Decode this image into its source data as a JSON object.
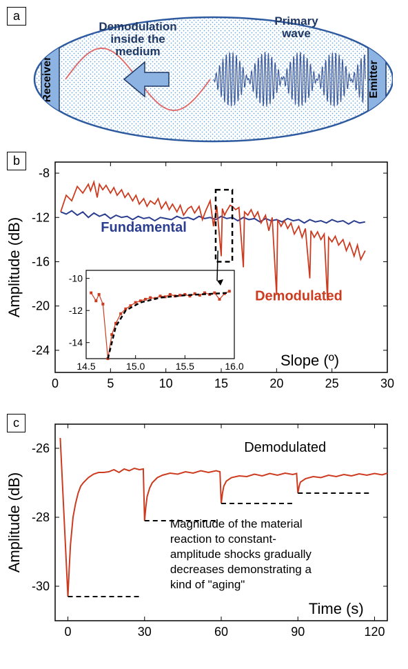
{
  "panel_a": {
    "label": "a",
    "text_demod": "Demodulation inside the medium",
    "text_primary": "Primary wave",
    "text_receiver": "Receiver",
    "text_emitter": "Emitter",
    "ellipse_fill": "#ffffff",
    "ellipse_stroke": "#2e5aa0",
    "dot_color": "#6fa8dc",
    "receiver_fill": "#8db3e2",
    "emitter_fill": "#8db3e2",
    "sine_color": "#e06666",
    "hf_color": "#3d5a9a",
    "arrow_fill": "#8db3e2",
    "text_color": "#1f3864"
  },
  "panel_b": {
    "label": "b",
    "ylabel": "Amplitude (dB)",
    "xlabel": "Slope (º)",
    "xlim": [
      0,
      30
    ],
    "ylim": [
      -26,
      -7
    ],
    "xticks": [
      0,
      5,
      10,
      15,
      20,
      25,
      30
    ],
    "yticks": [
      -8,
      -12,
      -16,
      -20,
      -24
    ],
    "fundamental_label": "Fundamental",
    "fundamental_color": "#2a3d8f",
    "demodulated_label": "Demodulated",
    "demodulated_color": "#cc3b1f",
    "fundamental_points": [
      [
        0.5,
        -11.5
      ],
      [
        1,
        -11.7
      ],
      [
        1.5,
        -11.4
      ],
      [
        2,
        -11.8
      ],
      [
        2.5,
        -11.5
      ],
      [
        3,
        -12.0
      ],
      [
        3.5,
        -11.6
      ],
      [
        4,
        -11.9
      ],
      [
        4.5,
        -11.7
      ],
      [
        5,
        -12.1
      ],
      [
        5.5,
        -11.8
      ],
      [
        6,
        -12.0
      ],
      [
        6.5,
        -11.9
      ],
      [
        7,
        -12.2
      ],
      [
        7.5,
        -11.9
      ],
      [
        8,
        -12.1
      ],
      [
        8.5,
        -12.0
      ],
      [
        9,
        -12.3
      ],
      [
        9.5,
        -12.0
      ],
      [
        10,
        -12.1
      ],
      [
        10.5,
        -12.2
      ],
      [
        11,
        -11.9
      ],
      [
        11.5,
        -12.1
      ],
      [
        12,
        -12.0
      ],
      [
        12.5,
        -12.2
      ],
      [
        13,
        -11.9
      ],
      [
        13.5,
        -12.1
      ],
      [
        14,
        -12.0
      ],
      [
        14.5,
        -12.2
      ],
      [
        15,
        -11.9
      ],
      [
        15.5,
        -12.1
      ],
      [
        16,
        -12.0
      ],
      [
        16.5,
        -12.3
      ],
      [
        17,
        -12.0
      ],
      [
        17.5,
        -12.2
      ],
      [
        18,
        -12.1
      ],
      [
        18.5,
        -12.4
      ],
      [
        19,
        -12.1
      ],
      [
        19.5,
        -12.3
      ],
      [
        20,
        -12.2
      ],
      [
        20.5,
        -12.4
      ],
      [
        21,
        -12.1
      ],
      [
        21.5,
        -12.3
      ],
      [
        22,
        -12.2
      ],
      [
        22.5,
        -12.5
      ],
      [
        23,
        -12.2
      ],
      [
        23.5,
        -12.4
      ],
      [
        24,
        -12.3
      ],
      [
        24.5,
        -12.5
      ],
      [
        25,
        -12.2
      ],
      [
        25.5,
        -12.4
      ],
      [
        26,
        -12.3
      ],
      [
        26.5,
        -12.6
      ],
      [
        27,
        -12.3
      ],
      [
        27.5,
        -12.5
      ],
      [
        28,
        -12.4
      ]
    ],
    "demodulated_points": [
      [
        0.5,
        -11.5
      ],
      [
        1,
        -10.0
      ],
      [
        1.5,
        -10.5
      ],
      [
        2,
        -9.2
      ],
      [
        2.5,
        -9.8
      ],
      [
        3,
        -9.0
      ],
      [
        3.2,
        -9.6
      ],
      [
        3.5,
        -8.8
      ],
      [
        3.8,
        -10.2
      ],
      [
        4,
        -9.0
      ],
      [
        4.3,
        -9.5
      ],
      [
        4.6,
        -9.1
      ],
      [
        5,
        -9.8
      ],
      [
        5.3,
        -9.3
      ],
      [
        5.6,
        -10.0
      ],
      [
        6,
        -9.5
      ],
      [
        6.3,
        -10.2
      ],
      [
        6.6,
        -9.8
      ],
      [
        7,
        -10.5
      ],
      [
        7.3,
        -10.0
      ],
      [
        7.6,
        -10.8
      ],
      [
        8,
        -10.3
      ],
      [
        8.3,
        -11.0
      ],
      [
        8.6,
        -10.5
      ],
      [
        9,
        -10.8
      ],
      [
        9.3,
        -10.3
      ],
      [
        9.6,
        -11.2
      ],
      [
        10,
        -10.6
      ],
      [
        10.3,
        -11.3
      ],
      [
        10.6,
        -10.8
      ],
      [
        11,
        -11.5
      ],
      [
        11.3,
        -10.9
      ],
      [
        11.6,
        -11.8
      ],
      [
        12,
        -11.2
      ],
      [
        12.3,
        -11.0
      ],
      [
        12.6,
        -11.6
      ],
      [
        13,
        -11.0
      ],
      [
        13.3,
        -12.2
      ],
      [
        13.6,
        -11.4
      ],
      [
        14,
        -10.5
      ],
      [
        14.3,
        -12.8
      ],
      [
        14.6,
        -11.0
      ],
      [
        15,
        -15.5
      ],
      [
        15.1,
        -11.2
      ],
      [
        15.3,
        -11.8
      ],
      [
        15.5,
        -11.4
      ],
      [
        15.8,
        -10.9
      ],
      [
        16,
        -11.0
      ],
      [
        16.3,
        -11.3
      ],
      [
        16.6,
        -11.1
      ],
      [
        17,
        -16.5
      ],
      [
        17.1,
        -11.5
      ],
      [
        17.4,
        -11.8
      ],
      [
        17.7,
        -11.3
      ],
      [
        18,
        -12.0
      ],
      [
        18.3,
        -11.5
      ],
      [
        18.6,
        -12.5
      ],
      [
        19,
        -11.8
      ],
      [
        19.3,
        -13.2
      ],
      [
        19.6,
        -12.0
      ],
      [
        20,
        -19.0
      ],
      [
        20.1,
        -12.2
      ],
      [
        20.4,
        -12.8
      ],
      [
        20.7,
        -12.3
      ],
      [
        21,
        -13.0
      ],
      [
        21.3,
        -12.5
      ],
      [
        21.6,
        -13.5
      ],
      [
        22,
        -12.8
      ],
      [
        22.3,
        -13.8
      ],
      [
        22.6,
        -13.0
      ],
      [
        23,
        -17.5
      ],
      [
        23.1,
        -13.2
      ],
      [
        23.4,
        -13.8
      ],
      [
        23.7,
        -13.3
      ],
      [
        24,
        -14.0
      ],
      [
        24.3,
        -13.5
      ],
      [
        24.6,
        -19.5
      ],
      [
        24.7,
        -13.8
      ],
      [
        25,
        -14.2
      ],
      [
        25.3,
        -13.7
      ],
      [
        25.6,
        -14.5
      ],
      [
        26,
        -14.0
      ],
      [
        26.3,
        -15.0
      ],
      [
        26.6,
        -14.3
      ],
      [
        27,
        -15.5
      ],
      [
        27.3,
        -14.5
      ],
      [
        27.6,
        -15.8
      ],
      [
        28,
        -15.0
      ]
    ],
    "inset": {
      "xlim": [
        14.5,
        16.0
      ],
      "ylim": [
        -15,
        -9.5
      ],
      "xticks": [
        14.5,
        15.0,
        15.5,
        16.0
      ],
      "yticks": [
        -10,
        -12,
        -14
      ],
      "color": "#cc3b1f",
      "points": [
        [
          14.55,
          -10.9
        ],
        [
          14.6,
          -11.4
        ],
        [
          14.63,
          -11.0
        ],
        [
          14.67,
          -11.6
        ],
        [
          14.72,
          -15.0
        ],
        [
          14.76,
          -13.5
        ],
        [
          14.8,
          -12.8
        ],
        [
          14.85,
          -12.2
        ],
        [
          14.9,
          -11.9
        ],
        [
          14.95,
          -11.7
        ],
        [
          15.0,
          -11.5
        ],
        [
          15.05,
          -11.4
        ],
        [
          15.1,
          -11.3
        ],
        [
          15.15,
          -11.2
        ],
        [
          15.2,
          -11.25
        ],
        [
          15.25,
          -11.1
        ],
        [
          15.3,
          -11.15
        ],
        [
          15.35,
          -11.0
        ],
        [
          15.4,
          -11.1
        ],
        [
          15.45,
          -11.05
        ],
        [
          15.5,
          -11.0
        ],
        [
          15.55,
          -11.1
        ],
        [
          15.6,
          -10.95
        ],
        [
          15.65,
          -11.05
        ],
        [
          15.7,
          -10.9
        ],
        [
          15.75,
          -11.0
        ],
        [
          15.8,
          -10.9
        ],
        [
          15.85,
          -11.3
        ],
        [
          15.9,
          -10.95
        ],
        [
          15.95,
          -10.8
        ]
      ],
      "dash_points": [
        [
          14.72,
          -15.0
        ],
        [
          14.8,
          -13.0
        ],
        [
          14.9,
          -12.0
        ],
        [
          15.05,
          -11.5
        ],
        [
          15.25,
          -11.2
        ],
        [
          15.5,
          -11.05
        ],
        [
          15.8,
          -10.95
        ],
        [
          15.95,
          -10.9
        ]
      ]
    }
  },
  "panel_c": {
    "label": "c",
    "ylabel": "Amplitude (dB)",
    "xlabel": "Time (s)",
    "xlim": [
      -5,
      125
    ],
    "ylim": [
      -31,
      -25.3
    ],
    "xticks": [
      0,
      30,
      60,
      90,
      120
    ],
    "yticks": [
      -26,
      -28,
      -30
    ],
    "demodulated_label": "Demodulated",
    "series_color": "#cc3b1f",
    "annotation": "Magnitude of the material reaction to constant-amplitude shocks gradually decreases demonstrating a kind of \"aging\"",
    "dash_levels": [
      -30.3,
      -28.1,
      -27.6,
      -27.3
    ],
    "dash_ranges": [
      [
        0,
        28
      ],
      [
        30,
        58
      ],
      [
        60,
        88
      ],
      [
        90,
        118
      ]
    ],
    "points": [
      [
        -3,
        -25.7
      ],
      [
        0,
        -30.3
      ],
      [
        0.5,
        -29.5
      ],
      [
        1,
        -28.8
      ],
      [
        2,
        -28.0
      ],
      [
        3,
        -27.6
      ],
      [
        4,
        -27.3
      ],
      [
        5,
        -27.1
      ],
      [
        6,
        -27.0
      ],
      [
        8,
        -26.85
      ],
      [
        10,
        -26.75
      ],
      [
        12,
        -26.7
      ],
      [
        14,
        -26.7
      ],
      [
        16,
        -26.68
      ],
      [
        18,
        -26.62
      ],
      [
        20,
        -26.7
      ],
      [
        22,
        -26.6
      ],
      [
        24,
        -26.65
      ],
      [
        26,
        -26.58
      ],
      [
        28,
        -26.62
      ],
      [
        29.5,
        -26.6
      ],
      [
        30,
        -28.1
      ],
      [
        30.5,
        -27.7
      ],
      [
        31,
        -27.4
      ],
      [
        32,
        -27.15
      ],
      [
        33,
        -27.0
      ],
      [
        35,
        -26.85
      ],
      [
        37,
        -26.78
      ],
      [
        40,
        -26.72
      ],
      [
        43,
        -26.75
      ],
      [
        46,
        -26.68
      ],
      [
        49,
        -26.72
      ],
      [
        52,
        -26.65
      ],
      [
        55,
        -26.7
      ],
      [
        58,
        -26.65
      ],
      [
        59.5,
        -26.68
      ],
      [
        60,
        -27.6
      ],
      [
        60.5,
        -27.3
      ],
      [
        61,
        -27.1
      ],
      [
        62,
        -26.95
      ],
      [
        64,
        -26.85
      ],
      [
        67,
        -26.8
      ],
      [
        70,
        -26.82
      ],
      [
        73,
        -26.75
      ],
      [
        76,
        -26.8
      ],
      [
        79,
        -26.73
      ],
      [
        82,
        -26.78
      ],
      [
        85,
        -26.72
      ],
      [
        88,
        -26.76
      ],
      [
        89.5,
        -26.73
      ],
      [
        90,
        -27.3
      ],
      [
        90.5,
        -27.1
      ],
      [
        91,
        -26.98
      ],
      [
        93,
        -26.88
      ],
      [
        96,
        -26.82
      ],
      [
        99,
        -26.85
      ],
      [
        102,
        -26.78
      ],
      [
        105,
        -26.82
      ],
      [
        108,
        -26.76
      ],
      [
        111,
        -26.8
      ],
      [
        114,
        -26.74
      ],
      [
        117,
        -26.78
      ],
      [
        120,
        -26.73
      ],
      [
        123,
        -26.77
      ],
      [
        125,
        -26.72
      ]
    ]
  }
}
